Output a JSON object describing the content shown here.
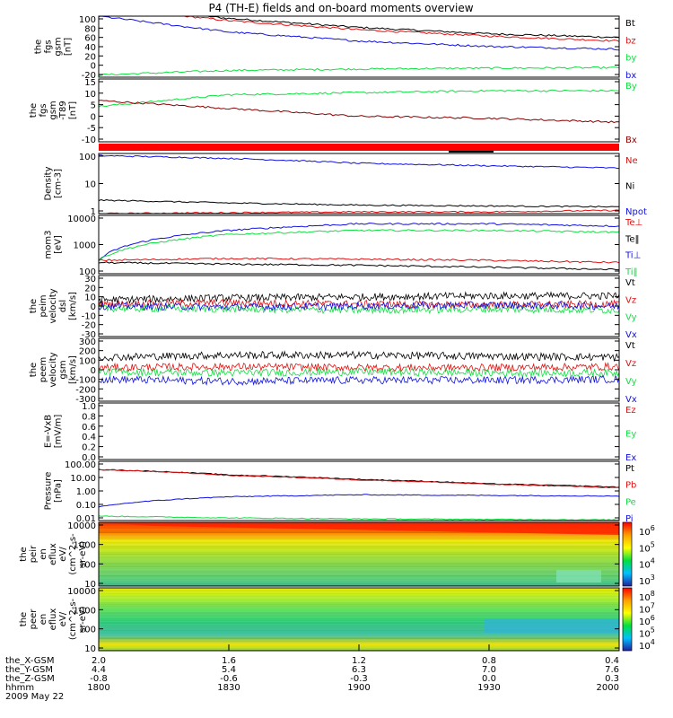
{
  "title": "P4 (TH-E) fields and on-board moments overview",
  "date_label": "2009 May 22",
  "colors": {
    "black": "#000000",
    "red": "#e01010",
    "green": "#10e040",
    "blue": "#1010e0",
    "darkred": "#8b0000"
  },
  "ephemeris": {
    "labels": [
      "the_X-GSM",
      "the_Y-GSM",
      "the_Z-GSM",
      "hhmm"
    ],
    "columns": [
      [
        "2.0",
        "4.4",
        "-0.8",
        "1800"
      ],
      [
        "1.6",
        "5.4",
        "-0.6",
        "1830"
      ],
      [
        "1.2",
        "6.3",
        "-0.3",
        "1900"
      ],
      [
        "0.8",
        "7.0",
        "0.0",
        "1930"
      ],
      [
        "0.4",
        "7.6",
        "0.3",
        "2000"
      ]
    ]
  },
  "chart_data": [
    {
      "type": "line",
      "id": "fgs",
      "ylabel": [
        "the",
        "fgs",
        "gsm",
        "[nT]"
      ],
      "yticks": [
        "100",
        "80",
        "60",
        "40",
        "20",
        "0",
        "-20"
      ],
      "legend": [
        {
          "name": "Bt",
          "color": "#000000"
        },
        {
          "name": "bz",
          "color": "#e01010"
        },
        {
          "name": "by",
          "color": "#10e040"
        },
        {
          "name": "bx",
          "color": "#1010e0"
        }
      ],
      "ylim": [
        -30,
        105
      ],
      "x": [
        0,
        0.25,
        0.5,
        0.75,
        1.0
      ],
      "series": [
        {
          "name": "Bt",
          "values": [
            128,
            100,
            80,
            66,
            58
          ]
        },
        {
          "name": "bz",
          "values": [
            125,
            95,
            75,
            61,
            50
          ]
        },
        {
          "name": "by",
          "values": [
            -25,
            -15,
            -12,
            -10,
            -9
          ]
        },
        {
          "name": "bx",
          "values": [
            105,
            70,
            50,
            38,
            32
          ]
        }
      ]
    },
    {
      "type": "line",
      "id": "fgs-detrend",
      "ylabel": [
        "the",
        "fgs",
        "gsm",
        "-T89",
        "[nT]"
      ],
      "yticks": [
        "15",
        "10",
        "5",
        "0",
        "-5",
        "-10"
      ],
      "legend": [
        {
          "name": "By",
          "color": "#10e040"
        },
        {
          "name": "Bx",
          "color": "#8b0000"
        }
      ],
      "ylim": [
        -15,
        17
      ],
      "x": [
        0,
        0.25,
        0.5,
        0.75,
        1.0
      ],
      "series": [
        {
          "name": "By",
          "values": [
            3,
            9,
            10,
            11,
            11
          ]
        },
        {
          "name": "Bx",
          "values": [
            6,
            2,
            -2,
            -3,
            -5
          ]
        }
      ]
    },
    {
      "type": "line",
      "id": "density",
      "ylabel": [
        "Density",
        "[cm-3]"
      ],
      "yticks": [
        "100",
        "10",
        "1"
      ],
      "legend": [
        {
          "name": "Ne",
          "color": "#e01010"
        },
        {
          "name": "Ni",
          "color": "#000000"
        },
        {
          "name": "Npot",
          "color": "#1010e0"
        }
      ],
      "ylim": [
        0.5,
        250
      ],
      "x": [
        0,
        0.25,
        0.5,
        0.75,
        1.0
      ],
      "series": [
        {
          "name": "Npot",
          "values": [
            200,
            150,
            90,
            70,
            55
          ]
        },
        {
          "name": "Ni",
          "values": [
            2.0,
            1.5,
            1.2,
            1.1,
            1.0
          ]
        },
        {
          "name": "Ne",
          "values": [
            0.5,
            0.55,
            0.6,
            0.6,
            0.7
          ]
        }
      ]
    },
    {
      "type": "line",
      "id": "temperature",
      "ylabel": [
        "mom3",
        "[eV]"
      ],
      "yticks": [
        "10000",
        "1000",
        "100"
      ],
      "legend": [
        {
          "name": "Te⊥",
          "color": "#e01010"
        },
        {
          "name": "Te‖",
          "color": "#000000"
        },
        {
          "name": "Ti⊥",
          "color": "#1010e0"
        },
        {
          "name": "Ti‖",
          "color": "#10e040"
        }
      ],
      "ylim": [
        100,
        12000
      ],
      "x": [
        0,
        0.25,
        0.5,
        0.75,
        1.0
      ],
      "series": [
        {
          "name": "Ti⊥",
          "values": [
            300,
            3500,
            6000,
            6000,
            5000
          ]
        },
        {
          "name": "Ti‖",
          "values": [
            300,
            2500,
            3500,
            3500,
            3000
          ]
        },
        {
          "name": "Te⊥",
          "values": [
            300,
            350,
            330,
            300,
            250
          ]
        },
        {
          "name": "Te‖",
          "values": [
            250,
            220,
            200,
            170,
            140
          ]
        }
      ]
    },
    {
      "type": "line",
      "id": "velocity-dsl",
      "ylabel": [
        "the",
        "peim",
        "velocity",
        "dsl",
        "[km/s]"
      ],
      "yticks": [
        "30",
        "20",
        "10",
        "0",
        "-10",
        "-20",
        "-30"
      ],
      "legend": [
        {
          "name": "Vt",
          "color": "#000000"
        },
        {
          "name": "Vz",
          "color": "#e01010"
        },
        {
          "name": "Vy",
          "color": "#10e040"
        },
        {
          "name": "Vx",
          "color": "#1010e0"
        }
      ],
      "ylim": [
        -30,
        30
      ],
      "x": [
        0,
        0.25,
        0.5,
        0.75,
        1.0
      ],
      "series": [
        {
          "name": "Vt",
          "values": [
            6,
            8,
            9,
            10,
            10
          ]
        },
        {
          "name": "Vz",
          "values": [
            2,
            3,
            2,
            1,
            2
          ]
        },
        {
          "name": "Vy",
          "values": [
            -2,
            -3,
            -4,
            -3,
            -4
          ]
        },
        {
          "name": "Vx",
          "values": [
            0,
            -1,
            0,
            1,
            0
          ]
        }
      ]
    },
    {
      "type": "line",
      "id": "velocity-gsm",
      "ylabel": [
        "the",
        "peem",
        "velocity",
        "gsm",
        "[km/s]"
      ],
      "yticks": [
        "300",
        "200",
        "100",
        "0",
        "-100",
        "-200",
        "-300"
      ],
      "legend": [
        {
          "name": "Vt",
          "color": "#000000"
        },
        {
          "name": "Vz",
          "color": "#e01010"
        },
        {
          "name": "Vy",
          "color": "#10e040"
        },
        {
          "name": "Vx",
          "color": "#1010e0"
        }
      ],
      "ylim": [
        -300,
        300
      ],
      "x": [
        0,
        0.25,
        0.5,
        0.75,
        1.0
      ],
      "series": [
        {
          "name": "Vt",
          "values": [
            120,
            140,
            140,
            130,
            120
          ]
        },
        {
          "name": "Vz",
          "values": [
            20,
            30,
            20,
            20,
            30
          ]
        },
        {
          "name": "Vy",
          "values": [
            -20,
            -30,
            -20,
            -30,
            -30
          ]
        },
        {
          "name": "Vx",
          "values": [
            -90,
            -110,
            -100,
            -100,
            -90
          ]
        }
      ]
    },
    {
      "type": "line",
      "id": "efield",
      "ylabel": [
        "E=-VxB",
        "[mV/m]"
      ],
      "yticks": [
        "1.0",
        "0.8",
        "0.6",
        "0.4",
        "0.2",
        "0.0"
      ],
      "legend": [
        {
          "name": "Ez",
          "color": "#e01010"
        },
        {
          "name": "Ey",
          "color": "#10e040"
        },
        {
          "name": "Ex",
          "color": "#1010e0"
        }
      ],
      "ylim": [
        0,
        1
      ],
      "x": [],
      "series": []
    },
    {
      "type": "line",
      "id": "pressure",
      "ylabel": [
        "Pressure",
        "[nPa]"
      ],
      "yticks": [
        "100.00",
        "10.00",
        "1.00",
        "0.10",
        "0.01"
      ],
      "legend": [
        {
          "name": "Pt",
          "color": "#000000"
        },
        {
          "name": "Pb",
          "color": "#e01010"
        },
        {
          "name": "Pe",
          "color": "#10e040"
        },
        {
          "name": "Pi",
          "color": "#1010e0"
        }
      ],
      "ylim": [
        0.01,
        100
      ],
      "x": [
        0,
        0.25,
        0.5,
        0.75,
        1.0
      ],
      "series": [
        {
          "name": "Pt",
          "values": [
            28,
            12,
            6,
            3,
            1.8
          ]
        },
        {
          "name": "Pb",
          "values": [
            27,
            11,
            5.5,
            2.8,
            1.6
          ]
        },
        {
          "name": "Pi",
          "values": [
            0.08,
            0.4,
            0.55,
            0.5,
            0.45
          ]
        },
        {
          "name": "Pe",
          "values": [
            0.02,
            0.015,
            0.013,
            0.012,
            0.011
          ]
        }
      ]
    },
    {
      "type": "heatmap",
      "id": "ion-spectrogram",
      "ylabel": [
        "the",
        "peir",
        "en",
        "eflux",
        "eV/",
        "(cm^2-s-",
        "sr-eV)"
      ],
      "yticks": [
        "10000",
        "1000",
        "100",
        "10"
      ],
      "colorbar_ticks": [
        "10^6",
        "10^5",
        "10^4",
        "10^3"
      ]
    },
    {
      "type": "heatmap",
      "id": "electron-spectrogram",
      "ylabel": [
        "the",
        "peer",
        "en",
        "eflux",
        "eV/",
        "(cm^2-s-",
        "sr-eV)"
      ],
      "yticks": [
        "10000",
        "1000",
        "100",
        "10"
      ],
      "colorbar_ticks": [
        "10^8",
        "10^7",
        "10^6",
        "10^5",
        "10^4"
      ]
    }
  ]
}
